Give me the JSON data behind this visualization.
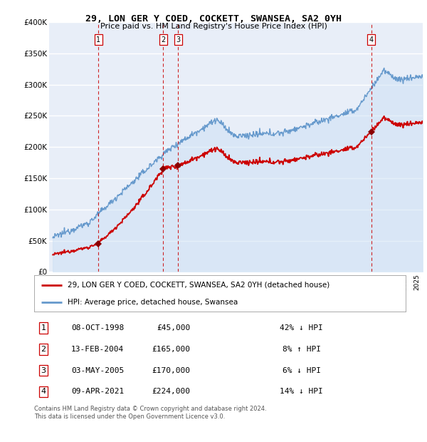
{
  "title": "29, LON GER Y COED, COCKETT, SWANSEA, SA2 0YH",
  "subtitle": "Price paid vs. HM Land Registry's House Price Index (HPI)",
  "ylim": [
    0,
    400000
  ],
  "yticks": [
    0,
    50000,
    100000,
    150000,
    200000,
    250000,
    300000,
    350000,
    400000
  ],
  "ytick_labels": [
    "£0",
    "£50K",
    "£100K",
    "£150K",
    "£200K",
    "£250K",
    "£300K",
    "£350K",
    "£400K"
  ],
  "xlim_start": 1994.7,
  "xlim_end": 2025.5,
  "sales": [
    {
      "label": "1",
      "year": 1998.77,
      "price": 45000,
      "date": "08-OCT-1998",
      "pct": "42%",
      "dir": "↓"
    },
    {
      "label": "2",
      "year": 2004.11,
      "price": 165000,
      "date": "13-FEB-2004",
      "pct": "8%",
      "dir": "↑"
    },
    {
      "label": "3",
      "year": 2005.33,
      "price": 170000,
      "date": "03-MAY-2005",
      "pct": "6%",
      "dir": "↓"
    },
    {
      "label": "4",
      "year": 2021.27,
      "price": 224000,
      "date": "09-APR-2021",
      "pct": "14%",
      "dir": "↓"
    }
  ],
  "property_line_color": "#cc0000",
  "hpi_line_color": "#6699cc",
  "hpi_fill_color": "#cce0f5",
  "marker_color": "#8b0000",
  "vline_color": "#cc0000",
  "legend_box_color": "#cc0000",
  "background_color": "#e8eef8",
  "grid_color": "#ffffff",
  "footnote": "Contains HM Land Registry data © Crown copyright and database right 2024.\nThis data is licensed under the Open Government Licence v3.0.",
  "legend1": "29, LON GER Y COED, COCKETT, SWANSEA, SA2 0YH (detached house)",
  "legend2": "HPI: Average price, detached house, Swansea",
  "table_rows": [
    [
      "1",
      "08-OCT-1998",
      "£45,000",
      "42% ↓ HPI"
    ],
    [
      "2",
      "13-FEB-2004",
      "£165,000",
      "8% ↑ HPI"
    ],
    [
      "3",
      "03-MAY-2005",
      "£170,000",
      "6% ↓ HPI"
    ],
    [
      "4",
      "09-APR-2021",
      "£224,000",
      "14% ↓ HPI"
    ]
  ]
}
